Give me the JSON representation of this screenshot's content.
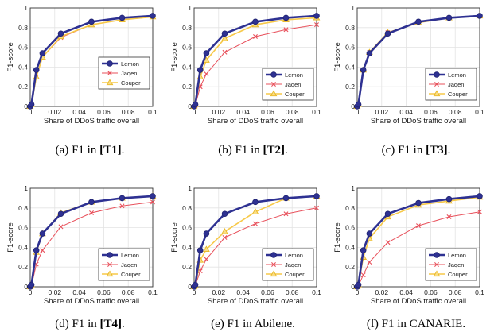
{
  "figure": {
    "panels": [
      {
        "caption_prefix": "(a)",
        "caption_plain": "F1 in ",
        "caption_bold": "[T1]",
        "caption_suffix": "."
      },
      {
        "caption_prefix": "(b)",
        "caption_plain": "F1 in ",
        "caption_bold": "[T2]",
        "caption_suffix": "."
      },
      {
        "caption_prefix": "(c)",
        "caption_plain": "F1 in ",
        "caption_bold": "[T3]",
        "caption_suffix": "."
      },
      {
        "caption_prefix": "(d)",
        "caption_plain": "F1 in ",
        "caption_bold": "[T4]",
        "caption_suffix": "."
      },
      {
        "caption_prefix": "(e)",
        "caption_plain": "F1 in Abilene.",
        "caption_bold": "",
        "caption_suffix": ""
      },
      {
        "caption_prefix": "(f)",
        "caption_plain": "F1 in CANARIE.",
        "caption_bold": "",
        "caption_suffix": ""
      }
    ]
  },
  "colors": {
    "Lemon": "#2e3192",
    "Jaqen": "#e8505b",
    "Couper": "#f7c948"
  },
  "chart_data": [
    {
      "type": "line",
      "title": "",
      "xlabel": "Share of DDoS traffic overall",
      "ylabel": "F1-score",
      "xlim": [
        0,
        0.1
      ],
      "ylim": [
        0,
        1
      ],
      "grid": true,
      "legend_position": "right-middle",
      "x": [
        0,
        0.001,
        0.005,
        0.01,
        0.025,
        0.05,
        0.075,
        0.1
      ],
      "xticks": [
        "0",
        "0.02",
        "0.04",
        "0.06",
        "0.08",
        "0.1"
      ],
      "yticks": [
        "0",
        "0.2",
        "0.4",
        "0.6",
        "0.8",
        "1"
      ],
      "series": [
        {
          "name": "Lemon",
          "marker": "circle",
          "values": [
            0,
            0.02,
            0.37,
            0.54,
            0.74,
            0.86,
            0.9,
            0.92
          ]
        },
        {
          "name": "Jaqen",
          "marker": "x",
          "values": [
            0,
            0.02,
            0.3,
            0.5,
            0.7,
            0.83,
            0.88,
            0.91
          ]
        },
        {
          "name": "Couper",
          "marker": "triangle",
          "values": [
            0,
            0.02,
            0.3,
            0.5,
            0.71,
            0.83,
            0.88,
            0.91
          ]
        }
      ]
    },
    {
      "type": "line",
      "title": "",
      "xlabel": "Share of DDoS traffic overall",
      "ylabel": "F1-score",
      "xlim": [
        0,
        0.1
      ],
      "ylim": [
        0,
        1
      ],
      "grid": true,
      "legend_position": "bottom-right",
      "x": [
        0,
        0.001,
        0.005,
        0.01,
        0.025,
        0.05,
        0.075,
        0.1
      ],
      "xticks": [
        "0",
        "0.02",
        "0.04",
        "0.06",
        "0.08",
        "0.1"
      ],
      "yticks": [
        "0",
        "0.2",
        "0.4",
        "0.6",
        "0.8",
        "1"
      ],
      "series": [
        {
          "name": "Lemon",
          "marker": "circle",
          "values": [
            0,
            0.02,
            0.37,
            0.54,
            0.74,
            0.86,
            0.9,
            0.92
          ]
        },
        {
          "name": "Jaqen",
          "marker": "x",
          "values": [
            0,
            0.01,
            0.2,
            0.33,
            0.55,
            0.71,
            0.78,
            0.83
          ]
        },
        {
          "name": "Couper",
          "marker": "triangle",
          "values": [
            0,
            0.02,
            0.3,
            0.47,
            0.69,
            0.83,
            0.88,
            0.9
          ]
        }
      ]
    },
    {
      "type": "line",
      "title": "",
      "xlabel": "Share of DDoS traffic overall",
      "ylabel": "F1-score",
      "xlim": [
        0,
        0.1
      ],
      "ylim": [
        0,
        1
      ],
      "grid": true,
      "legend_position": "bottom-right",
      "x": [
        0,
        0.001,
        0.005,
        0.01,
        0.025,
        0.05,
        0.075,
        0.1
      ],
      "xticks": [
        "0",
        "0.02",
        "0.04",
        "0.06",
        "0.08",
        "0.1"
      ],
      "yticks": [
        "0",
        "0.2",
        "0.4",
        "0.6",
        "0.8",
        "1"
      ],
      "series": [
        {
          "name": "Lemon",
          "marker": "circle",
          "values": [
            0,
            0.02,
            0.37,
            0.54,
            0.74,
            0.86,
            0.9,
            0.92
          ]
        },
        {
          "name": "Jaqen",
          "marker": "x",
          "values": [
            0,
            0.02,
            0.37,
            0.55,
            0.75,
            0.85,
            0.9,
            0.92
          ]
        },
        {
          "name": "Couper",
          "marker": "triangle",
          "values": [
            0,
            0.02,
            0.37,
            0.55,
            0.75,
            0.85,
            0.9,
            0.92
          ]
        }
      ]
    },
    {
      "type": "line",
      "title": "",
      "xlabel": "Share of DDoS traffic overall",
      "ylabel": "F1-score",
      "xlim": [
        0,
        0.1
      ],
      "ylim": [
        0,
        1
      ],
      "grid": true,
      "legend_position": "bottom-right",
      "x": [
        0,
        0.001,
        0.005,
        0.01,
        0.025,
        0.05,
        0.075,
        0.1
      ],
      "xticks": [
        "0",
        "0.02",
        "0.04",
        "0.06",
        "0.08",
        "0.1"
      ],
      "yticks": [
        "0",
        "0.2",
        "0.4",
        "0.6",
        "0.8",
        "1"
      ],
      "series": [
        {
          "name": "Lemon",
          "marker": "circle",
          "values": [
            0,
            0.02,
            0.37,
            0.54,
            0.74,
            0.86,
            0.9,
            0.92
          ]
        },
        {
          "name": "Jaqen",
          "marker": "x",
          "values": [
            0,
            0.01,
            0.23,
            0.37,
            0.61,
            0.75,
            0.82,
            0.86
          ]
        },
        {
          "name": "Couper",
          "marker": "triangle",
          "values": [
            0,
            0.02,
            0.35,
            0.54,
            0.75,
            0.86,
            0.9,
            0.92
          ]
        }
      ]
    },
    {
      "type": "line",
      "title": "",
      "xlabel": "Share of DDoS traffic overall",
      "ylabel": "F1-score",
      "xlim": [
        0,
        0.1
      ],
      "ylim": [
        0,
        1
      ],
      "grid": true,
      "legend_position": "bottom-right",
      "x": [
        0,
        0.001,
        0.005,
        0.01,
        0.025,
        0.05,
        0.075,
        0.1
      ],
      "xticks": [
        "0",
        "0.02",
        "0.04",
        "0.06",
        "0.08",
        "0.1"
      ],
      "yticks": [
        "0",
        "0.2",
        "0.4",
        "0.6",
        "0.8",
        "1"
      ],
      "series": [
        {
          "name": "Lemon",
          "marker": "circle",
          "values": [
            0,
            0.02,
            0.37,
            0.54,
            0.74,
            0.86,
            0.9,
            0.92
          ]
        },
        {
          "name": "Jaqen",
          "marker": "x",
          "values": [
            0,
            0.01,
            0.16,
            0.28,
            0.5,
            0.64,
            0.74,
            0.8
          ]
        },
        {
          "name": "Couper",
          "marker": "triangle",
          "values": [
            0,
            0.01,
            0.27,
            0.38,
            0.56,
            0.76,
            0.9,
            0.92
          ]
        }
      ]
    },
    {
      "type": "line",
      "title": "",
      "xlabel": "Share of DDoS traffic overall",
      "ylabel": "F1-score",
      "xlim": [
        0,
        0.1
      ],
      "ylim": [
        0,
        1
      ],
      "grid": true,
      "legend_position": "bottom-right",
      "x": [
        0,
        0.001,
        0.005,
        0.01,
        0.025,
        0.05,
        0.075,
        0.1
      ],
      "xticks": [
        "0",
        "0.02",
        "0.04",
        "0.06",
        "0.08",
        "0.1"
      ],
      "yticks": [
        "0",
        "0.2",
        "0.4",
        "0.6",
        "0.8",
        "1"
      ],
      "series": [
        {
          "name": "Lemon",
          "marker": "circle",
          "values": [
            0,
            0.02,
            0.37,
            0.54,
            0.74,
            0.85,
            0.89,
            0.92
          ]
        },
        {
          "name": "Jaqen",
          "marker": "x",
          "values": [
            0,
            0.01,
            0.12,
            0.25,
            0.45,
            0.62,
            0.71,
            0.76
          ]
        },
        {
          "name": "Couper",
          "marker": "triangle",
          "values": [
            0,
            0.02,
            0.3,
            0.49,
            0.71,
            0.83,
            0.87,
            0.91
          ]
        }
      ]
    }
  ]
}
